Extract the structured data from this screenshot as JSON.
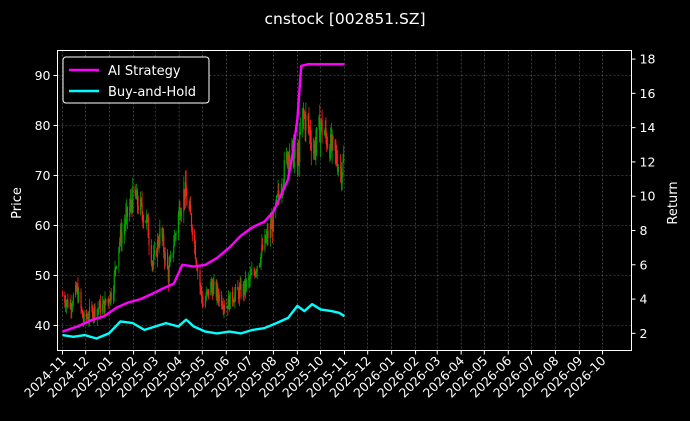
{
  "chart_data": {
    "type": "line",
    "title": "cnstock [002851.SZ]",
    "ylabel_left": "Price",
    "ylabel_right": "Return",
    "x_ticks": [
      "2024-11",
      "2024-12",
      "2025-01",
      "2025-02",
      "2025-03",
      "2025-04",
      "2025-05",
      "2025-06",
      "2025-07",
      "2025-08",
      "2025-09",
      "2025-10",
      "2025-11",
      "2025-12",
      "2026-01",
      "2026-02",
      "2026-03",
      "2026-04",
      "2026-05",
      "2026-06",
      "2026-07",
      "2026-08",
      "2026-09",
      "2026-10"
    ],
    "x_range": [
      "2024-11-01",
      "2026-11-01"
    ],
    "y_left_ticks": [
      40,
      50,
      60,
      70,
      80,
      90
    ],
    "y_left_range": [
      35,
      95
    ],
    "y_right_ticks": [
      2,
      4,
      6,
      8,
      10,
      12,
      14,
      16,
      18
    ],
    "y_right_range": [
      1,
      18.5
    ],
    "grid": true,
    "legend_position": "top-left",
    "colors": {
      "up": "#00a000",
      "down": "#ff2020",
      "strategy": "#ff00ff",
      "buyhold": "#00ffff",
      "grid": "#666666",
      "background": "#000000"
    },
    "price_path": [
      [
        "2024-11-01",
        46
      ],
      [
        "2024-11-10",
        44
      ],
      [
        "2024-11-20",
        47
      ],
      [
        "2024-11-28",
        41
      ],
      [
        "2024-12-10",
        43
      ],
      [
        "2024-12-25",
        44
      ],
      [
        "2025-01-05",
        47
      ],
      [
        "2025-01-12",
        56
      ],
      [
        "2025-01-22",
        61
      ],
      [
        "2025-02-01",
        66
      ],
      [
        "2025-02-08",
        64
      ],
      [
        "2025-02-18",
        61
      ],
      [
        "2025-02-26",
        52
      ],
      [
        "2025-03-08",
        59
      ],
      [
        "2025-03-18",
        50
      ],
      [
        "2025-04-01",
        63
      ],
      [
        "2025-04-08",
        67
      ],
      [
        "2025-04-18",
        60
      ],
      [
        "2025-04-26",
        50
      ],
      [
        "2025-05-02",
        44
      ],
      [
        "2025-05-12",
        48
      ],
      [
        "2025-05-22",
        46
      ],
      [
        "2025-06-01",
        44
      ],
      [
        "2025-06-10",
        46
      ],
      [
        "2025-06-22",
        47
      ],
      [
        "2025-07-05",
        50
      ],
      [
        "2025-07-20",
        56
      ],
      [
        "2025-08-01",
        61
      ],
      [
        "2025-08-12",
        69
      ],
      [
        "2025-08-22",
        76
      ],
      [
        "2025-09-01",
        72
      ],
      [
        "2025-09-08",
        82
      ],
      [
        "2025-09-15",
        80
      ],
      [
        "2025-09-22",
        75
      ],
      [
        "2025-10-01",
        80
      ],
      [
        "2025-10-10",
        77
      ],
      [
        "2025-10-20",
        74
      ],
      [
        "2025-10-28",
        71
      ],
      [
        "2025-11-01",
        73
      ]
    ],
    "series": [
      {
        "name": "AI Strategy",
        "axis": "right",
        "points": [
          [
            "2024-11-01",
            2.1
          ],
          [
            "2024-11-20",
            2.4
          ],
          [
            "2024-12-10",
            2.8
          ],
          [
            "2024-12-25",
            3.0
          ],
          [
            "2025-01-10",
            3.5
          ],
          [
            "2025-01-25",
            3.8
          ],
          [
            "2025-02-10",
            4.0
          ],
          [
            "2025-02-25",
            4.3
          ],
          [
            "2025-03-10",
            4.6
          ],
          [
            "2025-03-25",
            4.9
          ],
          [
            "2025-04-05",
            6.0
          ],
          [
            "2025-04-20",
            5.9
          ],
          [
            "2025-05-05",
            6.0
          ],
          [
            "2025-05-20",
            6.4
          ],
          [
            "2025-06-05",
            7.0
          ],
          [
            "2025-06-20",
            7.7
          ],
          [
            "2025-07-05",
            8.2
          ],
          [
            "2025-07-20",
            8.5
          ],
          [
            "2025-08-01",
            9.1
          ],
          [
            "2025-08-10",
            10.0
          ],
          [
            "2025-08-20",
            11.0
          ],
          [
            "2025-08-26",
            12.5
          ],
          [
            "2025-09-01",
            14.5
          ],
          [
            "2025-09-06",
            17.6
          ],
          [
            "2025-09-15",
            17.7
          ],
          [
            "2025-11-01",
            17.7
          ]
        ]
      },
      {
        "name": "Buy-and-Hold",
        "axis": "right",
        "points": [
          [
            "2024-11-01",
            1.9
          ],
          [
            "2024-11-15",
            1.8
          ],
          [
            "2024-11-30",
            1.9
          ],
          [
            "2024-12-15",
            1.7
          ],
          [
            "2024-12-31",
            2.0
          ],
          [
            "2025-01-15",
            2.7
          ],
          [
            "2025-01-31",
            2.6
          ],
          [
            "2025-02-15",
            2.2
          ],
          [
            "2025-03-01",
            2.4
          ],
          [
            "2025-03-15",
            2.6
          ],
          [
            "2025-03-31",
            2.4
          ],
          [
            "2025-04-10",
            2.8
          ],
          [
            "2025-04-20",
            2.4
          ],
          [
            "2025-05-05",
            2.1
          ],
          [
            "2025-05-20",
            2.0
          ],
          [
            "2025-06-05",
            2.1
          ],
          [
            "2025-06-20",
            2.0
          ],
          [
            "2025-07-05",
            2.2
          ],
          [
            "2025-07-20",
            2.3
          ],
          [
            "2025-08-05",
            2.6
          ],
          [
            "2025-08-20",
            2.9
          ],
          [
            "2025-09-01",
            3.6
          ],
          [
            "2025-09-10",
            3.3
          ],
          [
            "2025-09-20",
            3.7
          ],
          [
            "2025-10-01",
            3.4
          ],
          [
            "2025-10-15",
            3.3
          ],
          [
            "2025-10-25",
            3.2
          ],
          [
            "2025-11-01",
            3.0
          ]
        ]
      }
    ]
  }
}
